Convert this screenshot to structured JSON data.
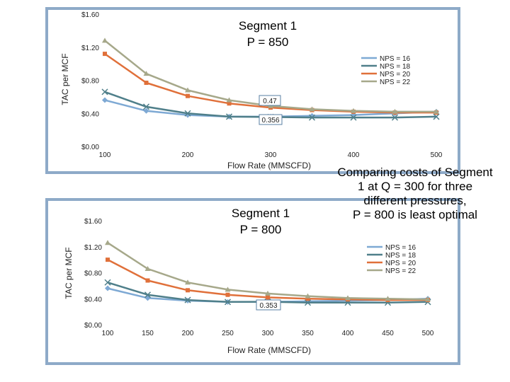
{
  "colors": {
    "frame": "#8eaac8",
    "nps16": "#7ea9d4",
    "nps18": "#4f7f8a",
    "nps20": "#e0703a",
    "nps22": "#a6a88a"
  },
  "chart_data": [
    {
      "type": "line",
      "title": "Segment 1",
      "subtitle": "P = 850",
      "xlabel": "Flow Rate (MMSCFD)",
      "ylabel": "TAC per MCF",
      "x": [
        100,
        150,
        200,
        250,
        300,
        350,
        400,
        450,
        500
      ],
      "xticks": [
        "100",
        "200",
        "300",
        "400",
        "500"
      ],
      "yticks": [
        "$0.00",
        "$0.40",
        "$0.80",
        "$1.20",
        "$1.60"
      ],
      "ylim": [
        0,
        1.6
      ],
      "xlim": [
        100,
        500
      ],
      "legend": "right",
      "series": [
        {
          "name": "NPS = 16",
          "values": [
            0.56,
            0.43,
            0.38,
            0.36,
            0.36,
            0.37,
            0.38,
            0.4,
            0.42
          ]
        },
        {
          "name": "NPS = 18",
          "values": [
            0.66,
            0.48,
            0.4,
            0.36,
            0.356,
            0.35,
            0.35,
            0.35,
            0.36
          ]
        },
        {
          "name": "NPS = 20",
          "values": [
            1.12,
            0.77,
            0.61,
            0.52,
            0.47,
            0.44,
            0.42,
            0.41,
            0.41
          ]
        },
        {
          "name": "NPS = 22",
          "values": [
            1.28,
            0.88,
            0.68,
            0.56,
            0.49,
            0.45,
            0.43,
            0.42,
            0.42
          ]
        }
      ],
      "annotations": [
        {
          "label": "0.356",
          "x": 300,
          "y": 0.356
        },
        {
          "label": "0.47",
          "x": 300,
          "y": 0.47
        }
      ]
    },
    {
      "type": "line",
      "title": "Segment 1",
      "subtitle": "P = 800",
      "xlabel": "Flow Rate (MMSCFD)",
      "ylabel": "TAC per MCF",
      "x": [
        100,
        150,
        200,
        250,
        300,
        350,
        400,
        450,
        500
      ],
      "xticks": [
        "100",
        "150",
        "200",
        "250",
        "300",
        "350",
        "400",
        "450",
        "500"
      ],
      "yticks": [
        "$0.00",
        "$0.40",
        "$0.80",
        "$1.20",
        "$1.60"
      ],
      "ylim": [
        0,
        1.6
      ],
      "xlim": [
        100,
        500
      ],
      "legend": "right",
      "series": [
        {
          "name": "NPS = 16",
          "values": [
            0.56,
            0.41,
            0.37,
            0.35,
            0.35,
            0.36,
            0.37,
            0.38,
            0.4
          ]
        },
        {
          "name": "NPS = 18",
          "values": [
            0.65,
            0.46,
            0.38,
            0.35,
            0.353,
            0.34,
            0.34,
            0.34,
            0.35
          ]
        },
        {
          "name": "NPS = 20",
          "values": [
            1.0,
            0.68,
            0.53,
            0.46,
            0.42,
            0.4,
            0.39,
            0.38,
            0.38
          ]
        },
        {
          "name": "NPS = 22",
          "values": [
            1.26,
            0.86,
            0.65,
            0.54,
            0.48,
            0.44,
            0.41,
            0.4,
            0.39
          ]
        }
      ],
      "annotations": [
        {
          "label": "0.353",
          "x": 300,
          "y": 0.353
        }
      ]
    }
  ],
  "callout": {
    "lines": [
      "Comparing costs of Segment",
      "1 at Q = 300 for three",
      "different pressures,",
      "P = 800 is least optimal"
    ]
  }
}
